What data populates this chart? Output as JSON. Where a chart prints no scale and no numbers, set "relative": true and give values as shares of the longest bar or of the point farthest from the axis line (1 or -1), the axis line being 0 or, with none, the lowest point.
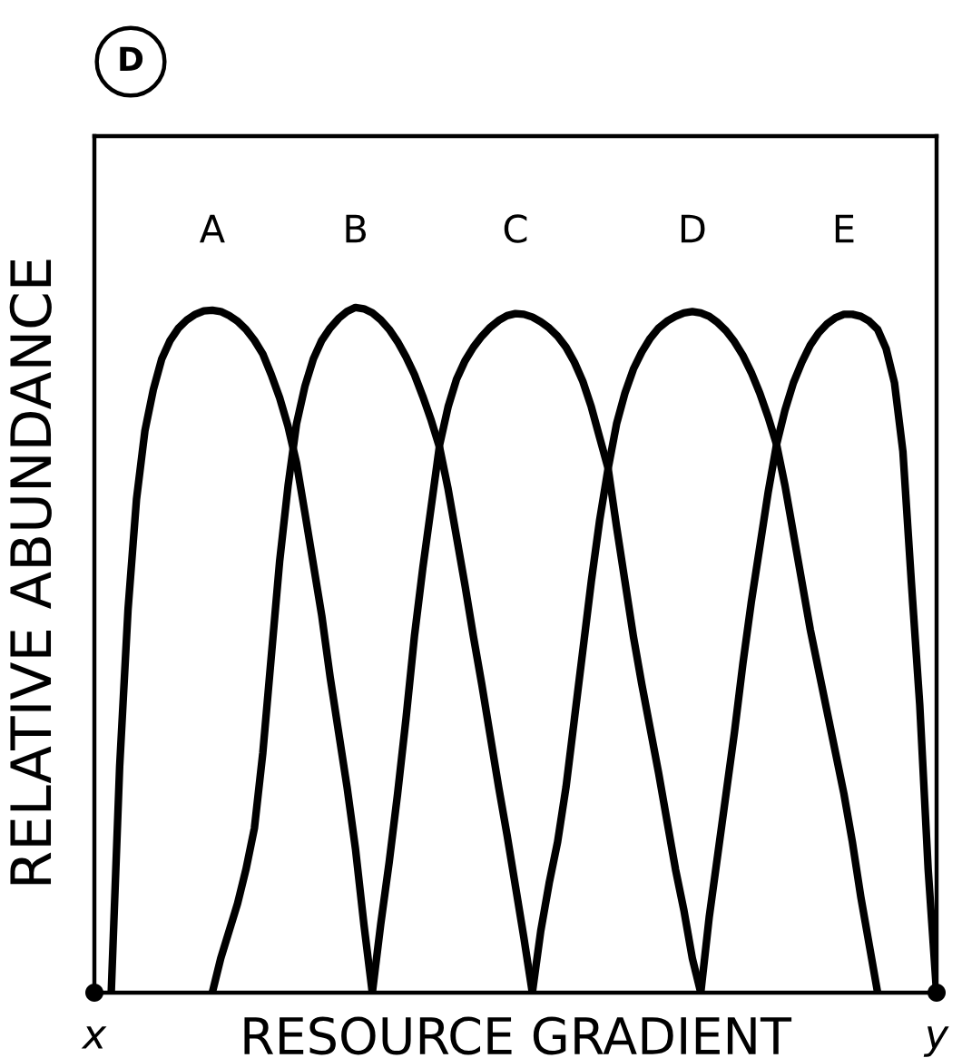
{
  "chart_data": {
    "type": "line",
    "relative": true,
    "xlabel": "RESOURCE GRADIENT",
    "ylabel": "RELATIVE ABUNDANCE",
    "annotations": [
      "D"
    ],
    "categories": [
      "x",
      null,
      null,
      null,
      null,
      null,
      null,
      null,
      null,
      null,
      null,
      null,
      null,
      null,
      null,
      null,
      null,
      null,
      null,
      null,
      null,
      null,
      null,
      null,
      null,
      null,
      null,
      null,
      null,
      null,
      null,
      null,
      null,
      null,
      null,
      null,
      null,
      null,
      null,
      null,
      null,
      null,
      null,
      null,
      null,
      null,
      null,
      null,
      null,
      null,
      null,
      null,
      null,
      null,
      null,
      null,
      null,
      null,
      null,
      null,
      null,
      null,
      null,
      null,
      null,
      null,
      null,
      null,
      null,
      null,
      null,
      null,
      null,
      null,
      null,
      null,
      null,
      null,
      null,
      null,
      null,
      null,
      null,
      null,
      null,
      null,
      null,
      null,
      null,
      null,
      null,
      null,
      null,
      null,
      null,
      null,
      null,
      null,
      null,
      null,
      "y"
    ],
    "series": [
      {
        "name": "A",
        "color": "#000000",
        "values": [
          null,
          null,
          0,
          0.33,
          0.56,
          0.72,
          0.82,
          0.88,
          0.925,
          0.952,
          0.97,
          0.982,
          0.99,
          0.995,
          0.996,
          0.994,
          0.988,
          0.98,
          0.968,
          0.952,
          0.932,
          0.902,
          0.868,
          0.826,
          0.773,
          0.7,
          0.625,
          0.55,
          0.46,
          0.38,
          0.3,
          0.21,
          0.1,
          0,
          null,
          null,
          null,
          null,
          null,
          null,
          null,
          null,
          null,
          null,
          null,
          null,
          null,
          null,
          null,
          null,
          null,
          null,
          null,
          null,
          null,
          null,
          null,
          null,
          null,
          null,
          null,
          null,
          null,
          null,
          null,
          null,
          null,
          null,
          null,
          null,
          null,
          null,
          null,
          null,
          null,
          null,
          null,
          null,
          null,
          null,
          null,
          null,
          null,
          null,
          null,
          null,
          null,
          null,
          null,
          null,
          null,
          null,
          null,
          null,
          null,
          null,
          null,
          null,
          null,
          null,
          null
        ]
      },
      {
        "name": "B",
        "color": "#000000",
        "values": [
          null,
          null,
          null,
          null,
          null,
          null,
          null,
          null,
          null,
          null,
          null,
          null,
          null,
          null,
          0,
          0.05,
          0.09,
          0.13,
          0.18,
          0.24,
          0.35,
          0.49,
          0.63,
          0.74,
          0.83,
          0.885,
          0.925,
          0.952,
          0.97,
          0.984,
          0.994,
          1.0,
          0.998,
          0.992,
          0.982,
          0.968,
          0.95,
          0.928,
          0.902,
          0.87,
          0.835,
          0.795,
          0.735,
          0.665,
          0.595,
          0.52,
          0.45,
          0.375,
          0.3,
          0.23,
          0.155,
          0.08,
          0,
          null,
          null,
          null,
          null,
          null,
          null,
          null,
          null,
          null,
          null,
          null,
          null,
          null,
          null,
          null,
          null,
          null,
          null,
          null,
          null,
          null,
          null,
          null,
          null,
          null,
          null,
          null,
          null,
          null,
          null,
          null,
          null,
          null,
          null,
          null,
          null,
          null,
          null,
          null,
          null,
          null,
          null,
          null,
          null,
          null,
          null,
          null,
          null
        ]
      },
      {
        "name": "C",
        "color": "#000000",
        "values": [
          null,
          null,
          null,
          null,
          null,
          null,
          null,
          null,
          null,
          null,
          null,
          null,
          null,
          null,
          null,
          null,
          null,
          null,
          null,
          null,
          null,
          null,
          null,
          null,
          null,
          null,
          null,
          null,
          null,
          null,
          null,
          null,
          null,
          0,
          0.1,
          0.19,
          0.29,
          0.4,
          0.52,
          0.62,
          0.71,
          0.8,
          0.855,
          0.895,
          0.922,
          0.942,
          0.958,
          0.971,
          0.981,
          0.988,
          0.991,
          0.99,
          0.986,
          0.979,
          0.97,
          0.958,
          0.942,
          0.92,
          0.892,
          0.855,
          0.81,
          0.765,
          0.68,
          0.6,
          0.52,
          0.45,
          0.385,
          0.32,
          0.25,
          0.18,
          0.12,
          0.05,
          0,
          null,
          null,
          null,
          null,
          null,
          null,
          null,
          null,
          null,
          null,
          null,
          null,
          null,
          null,
          null,
          null,
          null,
          null,
          null,
          null,
          null,
          null,
          null,
          null,
          null,
          null,
          null,
          null
        ]
      },
      {
        "name": "D",
        "color": "#000000",
        "values": [
          null,
          null,
          null,
          null,
          null,
          null,
          null,
          null,
          null,
          null,
          null,
          null,
          null,
          null,
          null,
          null,
          null,
          null,
          null,
          null,
          null,
          null,
          null,
          null,
          null,
          null,
          null,
          null,
          null,
          null,
          null,
          null,
          null,
          null,
          null,
          null,
          null,
          null,
          null,
          null,
          null,
          null,
          null,
          null,
          null,
          null,
          null,
          null,
          null,
          null,
          null,
          null,
          0,
          0.09,
          0.16,
          0.22,
          0.3,
          0.4,
          0.5,
          0.6,
          0.69,
          0.765,
          0.83,
          0.875,
          0.91,
          0.935,
          0.955,
          0.97,
          0.98,
          0.987,
          0.992,
          0.994,
          0.992,
          0.987,
          0.978,
          0.966,
          0.95,
          0.93,
          0.905,
          0.875,
          0.84,
          0.8,
          0.74,
          0.67,
          0.6,
          0.53,
          0.47,
          0.41,
          0.35,
          0.29,
          0.22,
          0.14,
          0.07,
          0,
          null,
          null,
          null,
          null,
          null,
          null,
          null
        ]
      },
      {
        "name": "E",
        "color": "#000000",
        "values": [
          null,
          null,
          null,
          null,
          null,
          null,
          null,
          null,
          null,
          null,
          null,
          null,
          null,
          null,
          null,
          null,
          null,
          null,
          null,
          null,
          null,
          null,
          null,
          null,
          null,
          null,
          null,
          null,
          null,
          null,
          null,
          null,
          null,
          null,
          null,
          null,
          null,
          null,
          null,
          null,
          null,
          null,
          null,
          null,
          null,
          null,
          null,
          null,
          null,
          null,
          null,
          null,
          null,
          null,
          null,
          null,
          null,
          null,
          null,
          null,
          null,
          null,
          null,
          null,
          null,
          null,
          null,
          null,
          null,
          null,
          null,
          null,
          0,
          0.11,
          0.2,
          0.29,
          0.38,
          0.48,
          0.57,
          0.65,
          0.73,
          0.8,
          0.85,
          0.89,
          0.92,
          0.945,
          0.963,
          0.976,
          0.985,
          0.99,
          0.99,
          0.987,
          0.98,
          0.968,
          0.94,
          0.89,
          0.79,
          0.6,
          0.42,
          0.18,
          0
        ]
      },
      {
        "type": "scatter",
        "marker": "circle",
        "color": "#000000",
        "values": [
          0,
          null,
          null,
          null,
          null,
          null,
          null,
          null,
          null,
          null,
          null,
          null,
          null,
          null,
          null,
          null,
          null,
          null,
          null,
          null,
          null,
          null,
          null,
          null,
          null,
          null,
          null,
          null,
          null,
          null,
          null,
          null,
          null,
          null,
          null,
          null,
          null,
          null,
          null,
          null,
          null,
          null,
          null,
          null,
          null,
          null,
          null,
          null,
          null,
          null,
          null,
          null,
          null,
          null,
          null,
          null,
          null,
          null,
          null,
          null,
          null,
          null,
          null,
          null,
          null,
          null,
          null,
          null,
          null,
          null,
          null,
          null,
          null,
          null,
          null,
          null,
          null,
          null,
          null,
          null,
          null,
          null,
          null,
          null,
          null,
          null,
          null,
          null,
          null,
          null,
          null,
          null,
          null,
          null,
          null,
          null,
          null,
          null,
          null,
          null,
          0
        ]
      }
    ]
  }
}
